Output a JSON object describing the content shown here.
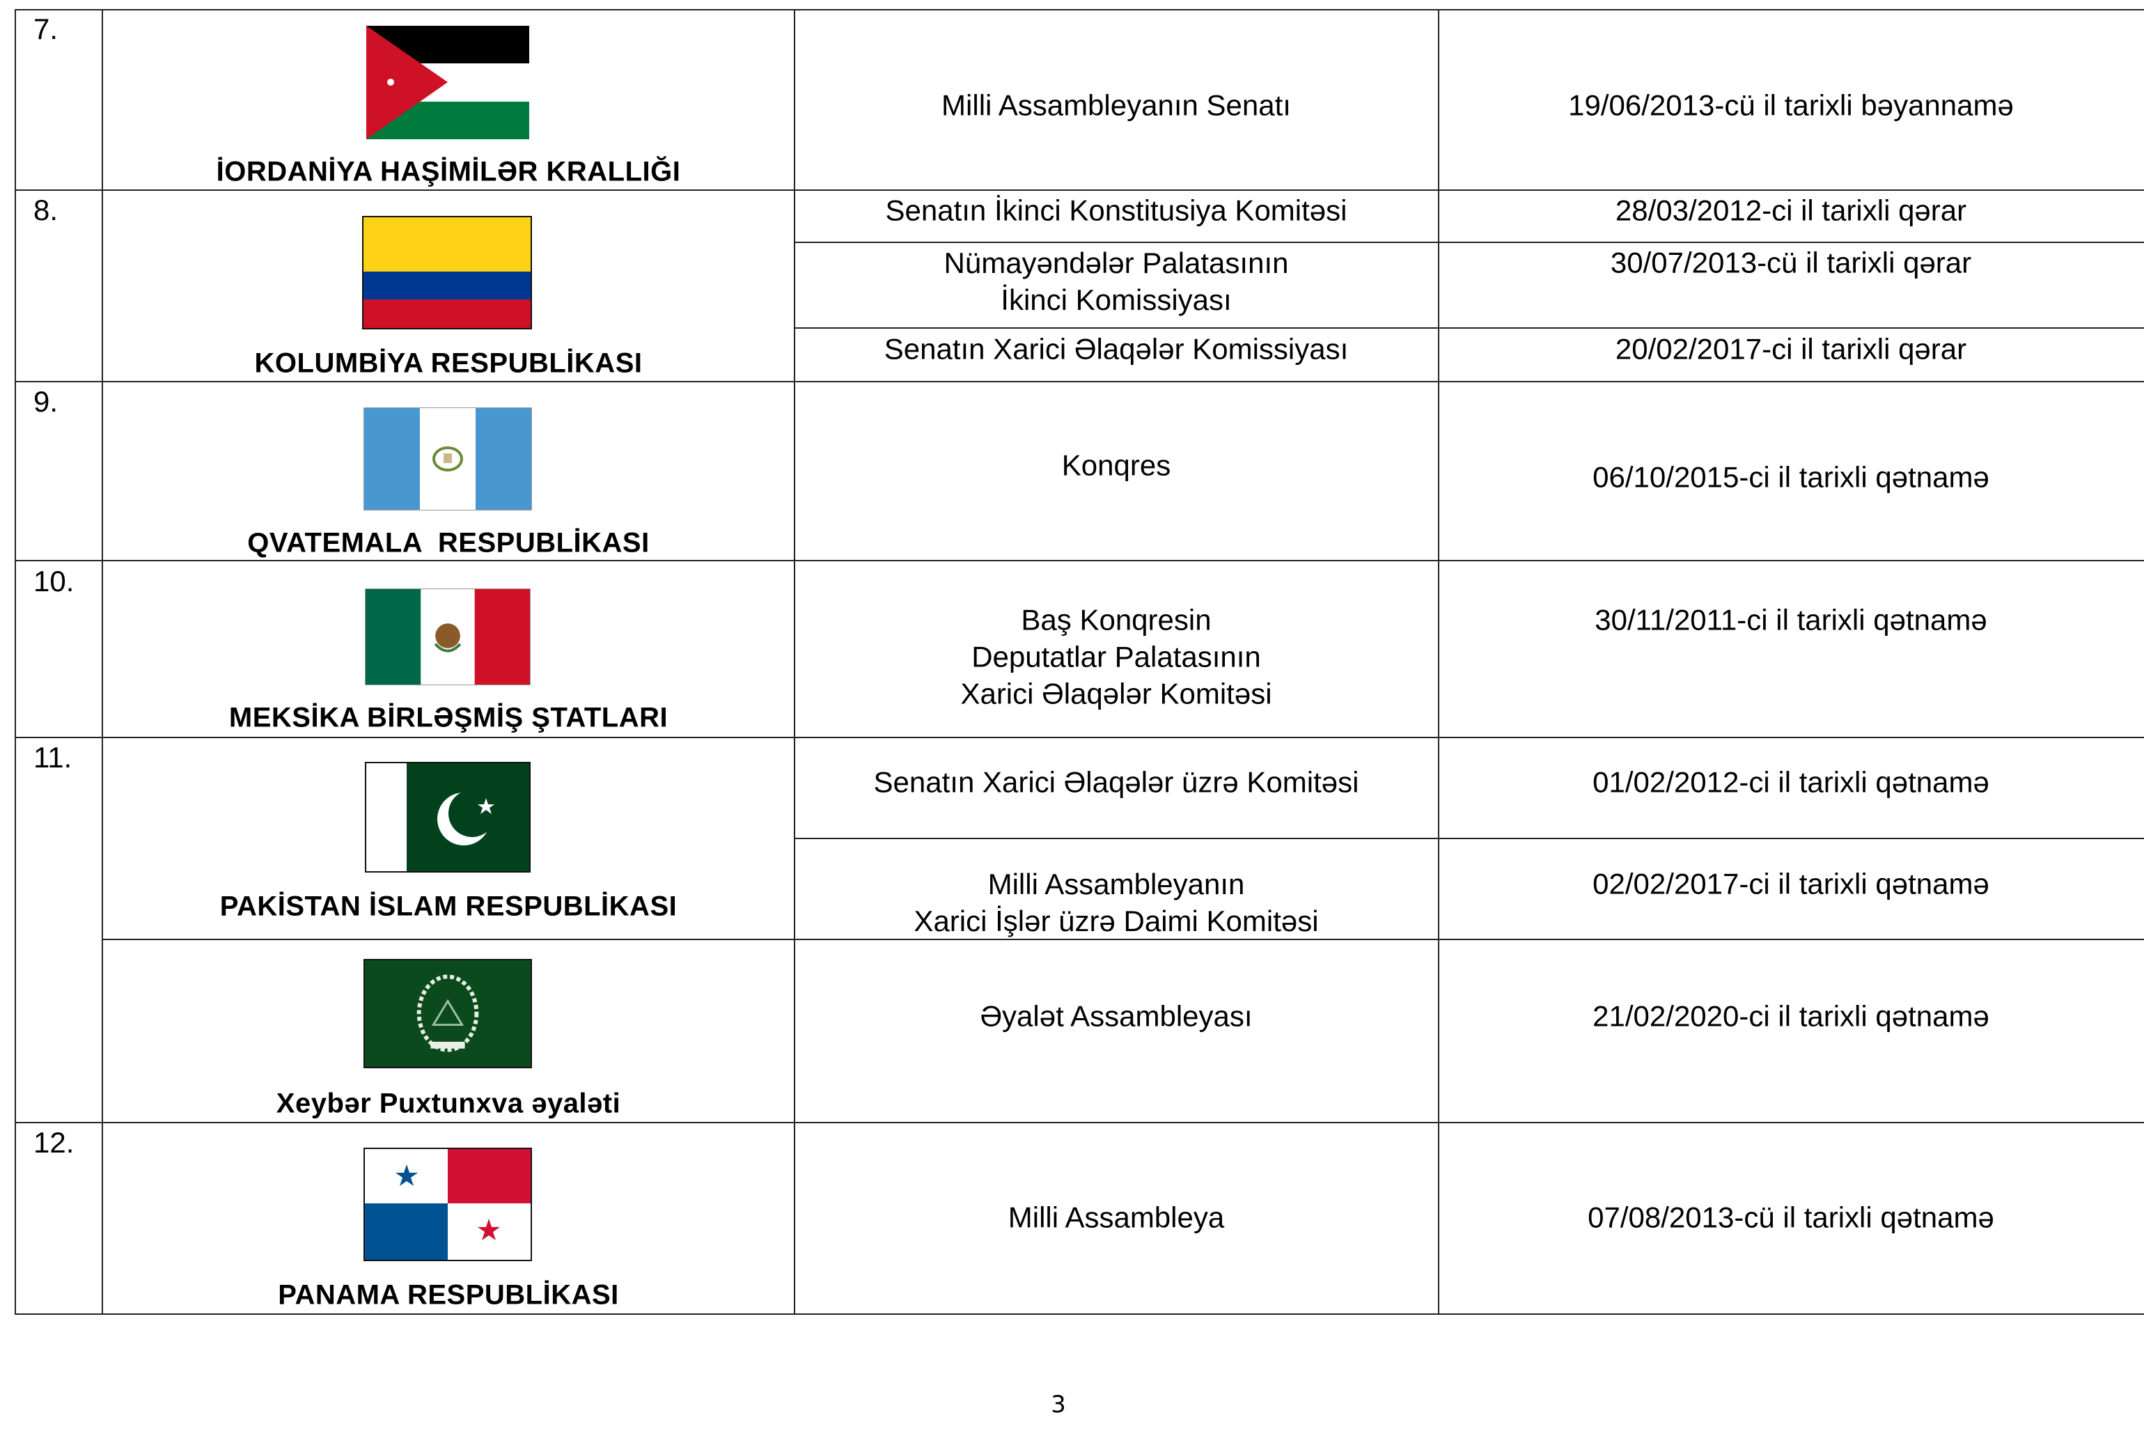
{
  "rows": [
    {
      "num": "7.",
      "country": "İORDANİYA HAŞİMİLƏR KRALLIĞI",
      "flag": "jordan-flag",
      "entries": [
        {
          "body": "Milli Assambleyanın Senatı",
          "doc": "19/06/2013-cü il tarixli bəyannamə"
        }
      ]
    },
    {
      "num": "8.",
      "country": "KOLUMBİYA RESPUBLİKASI",
      "flag": "colombia-flag",
      "entries": [
        {
          "body": "Senatın İkinci Konstitusiya Komitəsi",
          "doc": "28/03/2012-ci il tarixli qərar"
        },
        {
          "body_lines": [
            "Nümayəndələr Palatasının",
            "İkinci Komissiyası"
          ],
          "doc": "30/07/2013-cü il tarixli qərar"
        },
        {
          "body": "Senatın Xarici Əlaqələr Komissiyası",
          "doc": "20/02/2017-ci il tarixli qərar"
        }
      ]
    },
    {
      "num": "9.",
      "country": "QVATEMALA  RESPUBLİKASI",
      "flag": "guatemala-flag",
      "entries": [
        {
          "body": "Konqres",
          "doc": "06/10/2015-ci il tarixli qətnamə"
        }
      ]
    },
    {
      "num": "10.",
      "country": "MEKSİKA BİRLƏŞMİŞ ŞTATLARI",
      "flag": "mexico-flag",
      "entries": [
        {
          "body_lines": [
            "Baş Konqresin",
            "Deputatlar Palatasının",
            "Xarici Əlaqələr Komitəsi"
          ],
          "doc": "30/11/2011-ci il tarixli qətnamə"
        }
      ]
    },
    {
      "num": "11.",
      "country": "PAKİSTAN İSLAM RESPUBLİKASI",
      "flag": "pakistan-flag",
      "entries": [
        {
          "body": "Senatın Xarici Əlaqələr üzrə Komitəsi",
          "doc": "01/02/2012-ci il tarixli qətnamə"
        },
        {
          "body_lines": [
            "Milli Assambleyanın",
            "Xarici İşlər üzrə Daimi Komitəsi"
          ],
          "doc": "02/02/2017-ci il tarixli qətnamə"
        }
      ],
      "sub": {
        "country": "Xeybər Puxtunxva əyaləti",
        "flag": "khyber-pakhtunkhwa-flag",
        "entries": [
          {
            "body": "Əyalət Assambleyası",
            "doc": "21/02/2020-ci il tarixli qətnamə"
          }
        ]
      }
    },
    {
      "num": "12.",
      "country": "PANAMA RESPUBLİKASI",
      "flag": "panama-flag",
      "entries": [
        {
          "body": "Milli Assambleya",
          "doc": "07/08/2013-cü il tarixli qətnamə"
        }
      ]
    }
  ],
  "page_number": "3",
  "colors": {
    "border": "#222222",
    "text": "#000000"
  }
}
